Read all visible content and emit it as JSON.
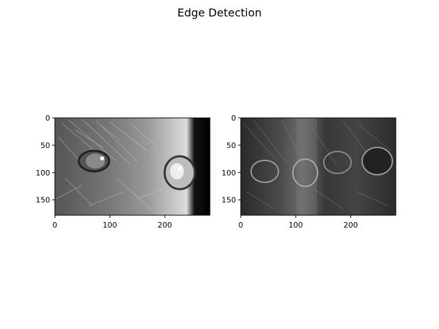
{
  "figure": {
    "title": "Edge Detection"
  },
  "chart_data": [
    {
      "type": "heatmap",
      "description_visible": "grayscale photo of cat eyes",
      "image_width": 282,
      "image_height": 178,
      "xlim": [
        0,
        282
      ],
      "ylim": [
        178,
        0
      ],
      "xticks": [
        0,
        100,
        200
      ],
      "yticks": [
        0,
        50,
        100,
        150
      ],
      "colormap": "gray"
    },
    {
      "type": "heatmap",
      "description_visible": "edge-detected grayscale image of cat eyes",
      "image_width": 282,
      "image_height": 178,
      "xlim": [
        0,
        282
      ],
      "ylim": [
        178,
        0
      ],
      "xticks": [
        0,
        100,
        200
      ],
      "yticks": [
        0,
        50,
        100,
        150
      ],
      "colormap": "gray"
    }
  ]
}
